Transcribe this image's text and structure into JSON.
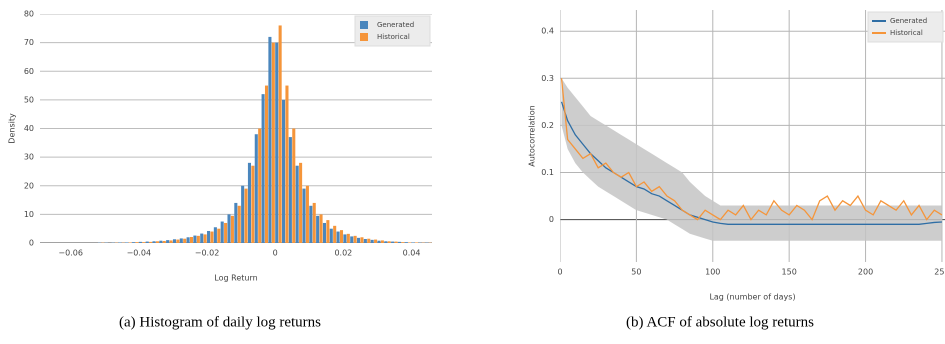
{
  "chart_data": [
    {
      "type": "histogram",
      "caption": "(a) Histogram of daily log returns",
      "xlabel": "Log Return",
      "ylabel": "Density",
      "bins": [
        -0.064,
        -0.062,
        -0.06,
        -0.058,
        -0.056,
        -0.054,
        -0.052,
        -0.05,
        -0.048,
        -0.046,
        -0.044,
        -0.042,
        -0.04,
        -0.038,
        -0.036,
        -0.034,
        -0.032,
        -0.03,
        -0.028,
        -0.026,
        -0.024,
        -0.022,
        -0.02,
        -0.018,
        -0.016,
        -0.014,
        -0.012,
        -0.01,
        -0.008,
        -0.006,
        -0.004,
        -0.002,
        0,
        0.002,
        0.004,
        0.006,
        0.008,
        0.01,
        0.012,
        0.014,
        0.016,
        0.018,
        0.02,
        0.022,
        0.024,
        0.026,
        0.028,
        0.03,
        0.032,
        0.034,
        0.036,
        0.038,
        0.04,
        0.042,
        0.044,
        0.046
      ],
      "series": [
        {
          "name": "Generated",
          "color": "#4a86bd",
          "values": [
            0,
            0,
            0,
            0,
            0,
            0,
            0.1,
            0.1,
            0.1,
            0.2,
            0.2,
            0.3,
            0.4,
            0.5,
            0.6,
            0.8,
            1.0,
            1.3,
            1.6,
            2.0,
            2.6,
            3.3,
            4.2,
            5.5,
            7.5,
            10,
            14,
            20,
            28,
            38,
            52,
            72,
            70,
            50,
            37,
            27,
            19,
            13,
            9.5,
            7,
            5,
            4,
            3,
            2.3,
            1.8,
            1.4,
            1.1,
            0.8,
            0.6,
            0.5,
            0.4,
            0.3,
            0.2,
            0.1,
            0.1
          ]
        },
        {
          "name": "Historical",
          "color": "#f5953a",
          "values": [
            0,
            0,
            0,
            0,
            0,
            0,
            0.1,
            0,
            0.1,
            0.1,
            0.2,
            0.3,
            0.3,
            0.4,
            0.6,
            0.7,
            0.9,
            1.2,
            1.5,
            2.1,
            2.5,
            3.0,
            4.0,
            5.0,
            7.0,
            9.5,
            13,
            19,
            27,
            40,
            55,
            70,
            76,
            55,
            40,
            28,
            20,
            14,
            10,
            8,
            6,
            4.5,
            3.2,
            2.5,
            2,
            1.5,
            1.2,
            0.9,
            0.6,
            0.5,
            0.3,
            0.2,
            0.2,
            0.1,
            0.1
          ]
        }
      ],
      "xlim": [
        -0.069,
        0.046
      ],
      "ylim": [
        0,
        80
      ],
      "xticks": [
        {
          "value": -0.06,
          "label": "−0.06"
        },
        {
          "value": -0.04,
          "label": "−0.04"
        },
        {
          "value": -0.02,
          "label": "−0.02"
        },
        0,
        0.02,
        0.04
      ],
      "yticks": [
        0,
        10,
        20,
        30,
        40,
        50,
        60,
        70,
        80
      ],
      "grid": "y",
      "legend": "top-right"
    },
    {
      "type": "line",
      "caption": "(b) ACF of absolute log returns",
      "xlabel": "Lag (number of days)",
      "ylabel": "Autocorrelation",
      "x": [
        1,
        5,
        10,
        15,
        20,
        25,
        30,
        35,
        40,
        45,
        50,
        55,
        60,
        65,
        70,
        75,
        80,
        85,
        90,
        95,
        100,
        105,
        110,
        115,
        120,
        125,
        130,
        135,
        140,
        145,
        150,
        155,
        160,
        165,
        170,
        175,
        180,
        185,
        190,
        195,
        200,
        205,
        210,
        215,
        220,
        225,
        230,
        235,
        240,
        245,
        250
      ],
      "series": [
        {
          "name": "Generated",
          "color": "#2f6ea5",
          "band_color": "#c4c4c4",
          "values": [
            0.25,
            0.21,
            0.18,
            0.16,
            0.14,
            0.125,
            0.11,
            0.1,
            0.09,
            0.08,
            0.07,
            0.065,
            0.055,
            0.05,
            0.04,
            0.03,
            0.02,
            0.01,
            0.005,
            0,
            -0.005,
            -0.008,
            -0.01,
            -0.01,
            -0.01,
            -0.01,
            -0.01,
            -0.01,
            -0.01,
            -0.01,
            -0.01,
            -0.01,
            -0.01,
            -0.01,
            -0.01,
            -0.01,
            -0.01,
            -0.01,
            -0.01,
            -0.01,
            -0.01,
            -0.01,
            -0.01,
            -0.01,
            -0.01,
            -0.01,
            -0.01,
            -0.01,
            -0.008,
            -0.006,
            -0.005
          ],
          "upper": [
            0.3,
            0.28,
            0.26,
            0.24,
            0.22,
            0.21,
            0.2,
            0.19,
            0.18,
            0.17,
            0.16,
            0.15,
            0.14,
            0.13,
            0.12,
            0.11,
            0.1,
            0.08,
            0.065,
            0.05,
            0.04,
            0.03,
            0.03,
            0.03,
            0.03,
            0.03,
            0.03,
            0.03,
            0.03,
            0.03,
            0.03,
            0.03,
            0.03,
            0.03,
            0.03,
            0.03,
            0.03,
            0.03,
            0.03,
            0.03,
            0.03,
            0.03,
            0.03,
            0.03,
            0.03,
            0.03,
            0.03,
            0.03,
            0.03,
            0.03,
            0.03
          ],
          "lower": [
            0.2,
            0.15,
            0.12,
            0.1,
            0.085,
            0.07,
            0.06,
            0.05,
            0.04,
            0.03,
            0.02,
            0.015,
            0.01,
            0.005,
            0,
            -0.01,
            -0.02,
            -0.03,
            -0.035,
            -0.04,
            -0.045,
            -0.045,
            -0.045,
            -0.045,
            -0.045,
            -0.045,
            -0.045,
            -0.045,
            -0.045,
            -0.045,
            -0.045,
            -0.045,
            -0.045,
            -0.045,
            -0.045,
            -0.045,
            -0.045,
            -0.045,
            -0.045,
            -0.045,
            -0.045,
            -0.045,
            -0.045,
            -0.045,
            -0.045,
            -0.045,
            -0.045,
            -0.045,
            -0.045,
            -0.045,
            -0.045
          ]
        },
        {
          "name": "Historical",
          "color": "#f5953a",
          "values": [
            0.3,
            0.17,
            0.15,
            0.13,
            0.14,
            0.11,
            0.12,
            0.1,
            0.09,
            0.1,
            0.07,
            0.08,
            0.06,
            0.07,
            0.05,
            0.04,
            0.02,
            0.01,
            0.0,
            0.02,
            0.01,
            0.0,
            0.02,
            0.01,
            0.03,
            0.0,
            0.02,
            0.01,
            0.04,
            0.02,
            0.01,
            0.03,
            0.02,
            0.0,
            0.04,
            0.05,
            0.02,
            0.04,
            0.03,
            0.05,
            0.02,
            0.01,
            0.04,
            0.03,
            0.02,
            0.04,
            0.01,
            0.03,
            0.0,
            0.02,
            0.01
          ]
        }
      ],
      "xlim": [
        0,
        252
      ],
      "ylim": [
        -0.09,
        0.445
      ],
      "xticks": [
        0,
        50,
        100,
        150,
        200,
        250
      ],
      "yticks": [
        0,
        0.1,
        0.2,
        0.3,
        0.4
      ],
      "grid": "xy",
      "legend": "top-right"
    }
  ]
}
